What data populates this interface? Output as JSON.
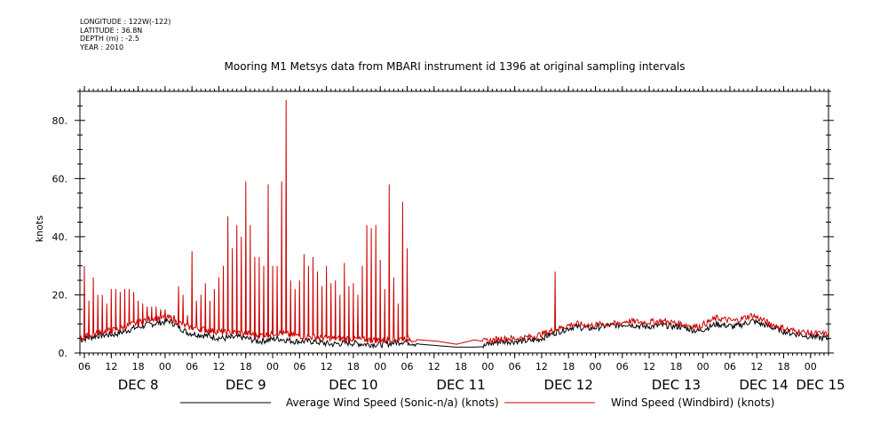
{
  "header": {
    "longitude": "LONGITUDE : 122W(-122)",
    "latitude": "LATITUDE : 36.8N",
    "depth": "DEPTH (m) : -2.5",
    "year": "YEAR : 2010"
  },
  "chart_data": {
    "type": "line",
    "title": "Mooring M1 Metsys data from MBARI instrument id 1396 at original sampling intervals",
    "ylabel": "knots",
    "xlabel": "",
    "ylim": [
      0,
      90
    ],
    "xlim_hours": [
      0,
      167
    ],
    "yticks": [
      0,
      20,
      40,
      60,
      80
    ],
    "ytick_labels": [
      "0.",
      "20.",
      "40.",
      "60.",
      "80."
    ],
    "hour_ticks": [
      "06",
      "12",
      "18",
      "00",
      "06",
      "12",
      "18",
      "00",
      "06",
      "12",
      "18",
      "00",
      "06",
      "12",
      "18",
      "00",
      "06",
      "12",
      "18",
      "00",
      "06",
      "12",
      "18",
      "00",
      "06",
      "12",
      "18",
      "00"
    ],
    "day_labels": [
      "DEC  8",
      "DEC  9",
      "DEC 10",
      "DEC 11",
      "DEC 12",
      "DEC 13",
      "DEC 14",
      "DEC 15"
    ],
    "grid": false,
    "legend": "bottom",
    "series": [
      {
        "name": "Average Wind Speed (Sonic-n/a) (knots)",
        "color": "#000000",
        "points": [
          [
            0,
            4.5
          ],
          [
            4,
            6
          ],
          [
            8,
            6.5
          ],
          [
            12,
            8.5
          ],
          [
            16,
            10
          ],
          [
            20,
            11
          ],
          [
            24,
            7
          ],
          [
            28,
            6
          ],
          [
            32,
            5
          ],
          [
            36,
            5.5
          ],
          [
            40,
            4
          ],
          [
            44,
            5
          ],
          [
            48,
            4
          ],
          [
            52,
            4
          ],
          [
            56,
            3
          ],
          [
            60,
            3.5
          ],
          [
            64,
            3
          ],
          [
            68,
            3
          ],
          [
            72,
            4
          ],
          [
            76,
            3
          ],
          [
            80,
            2.5
          ],
          [
            84,
            2
          ],
          [
            88,
            2
          ],
          [
            90,
            2.2
          ],
          [
            91,
            3
          ],
          [
            94,
            4
          ],
          [
            98,
            4
          ],
          [
            102,
            4.5
          ],
          [
            106,
            7
          ],
          [
            110,
            9
          ],
          [
            114,
            8.5
          ],
          [
            118,
            9.5
          ],
          [
            120,
            9.5
          ],
          [
            122,
            10
          ],
          [
            126,
            9
          ],
          [
            130,
            9.5
          ],
          [
            134,
            9
          ],
          [
            138,
            7.5
          ],
          [
            142,
            10
          ],
          [
            146,
            9
          ],
          [
            150,
            11
          ],
          [
            154,
            9
          ],
          [
            158,
            7
          ],
          [
            162,
            6
          ],
          [
            166,
            5
          ],
          [
            170,
            5
          ],
          [
            174,
            4
          ],
          [
            178,
            5.5
          ],
          [
            180,
            6
          ],
          [
            182,
            5
          ],
          [
            184,
            6
          ],
          [
            186,
            5.5
          ],
          [
            188,
            5
          ],
          [
            190,
            6
          ]
        ]
      },
      {
        "name": "Wind Speed (Windbird) (knots)",
        "color": "#cc0000",
        "points": [
          [
            0,
            5
          ],
          [
            4,
            7
          ],
          [
            8,
            8
          ],
          [
            12,
            10
          ],
          [
            16,
            12
          ],
          [
            20,
            12
          ],
          [
            24,
            9
          ],
          [
            28,
            8
          ],
          [
            32,
            7
          ],
          [
            36,
            7
          ],
          [
            40,
            6
          ],
          [
            44,
            7
          ],
          [
            48,
            6
          ],
          [
            52,
            5.5
          ],
          [
            56,
            5
          ],
          [
            60,
            5
          ],
          [
            64,
            4.5
          ],
          [
            68,
            4.5
          ],
          [
            72,
            5
          ],
          [
            76,
            4.5
          ],
          [
            80,
            4
          ],
          [
            84,
            3
          ],
          [
            88,
            4.5
          ],
          [
            90,
            4
          ],
          [
            91,
            4
          ],
          [
            94,
            5
          ],
          [
            98,
            5
          ],
          [
            102,
            6
          ],
          [
            106,
            8
          ],
          [
            110,
            10
          ],
          [
            114,
            9.5
          ],
          [
            118,
            10
          ],
          [
            120,
            10
          ],
          [
            122,
            11
          ],
          [
            126,
            10.5
          ],
          [
            130,
            11
          ],
          [
            134,
            10
          ],
          [
            138,
            9
          ],
          [
            142,
            12
          ],
          [
            146,
            11
          ],
          [
            150,
            13
          ],
          [
            154,
            10
          ],
          [
            158,
            8
          ],
          [
            162,
            7
          ],
          [
            166,
            6.5
          ],
          [
            170,
            6.5
          ],
          [
            174,
            6
          ],
          [
            178,
            7
          ],
          [
            180,
            8
          ],
          [
            182,
            7
          ],
          [
            184,
            8
          ],
          [
            186,
            7.5
          ],
          [
            188,
            7
          ],
          [
            190,
            7.5
          ]
        ],
        "spikes": [
          [
            1,
            30
          ],
          [
            2,
            18
          ],
          [
            3,
            26
          ],
          [
            4,
            20
          ],
          [
            5,
            20
          ],
          [
            6,
            17
          ],
          [
            7,
            22
          ],
          [
            8,
            22
          ],
          [
            9,
            21
          ],
          [
            10,
            22
          ],
          [
            11,
            22
          ],
          [
            12,
            21
          ],
          [
            13,
            18
          ],
          [
            14,
            17
          ],
          [
            15,
            16
          ],
          [
            16,
            16
          ],
          [
            17,
            16
          ],
          [
            18,
            15
          ],
          [
            19,
            15
          ],
          [
            20,
            13
          ],
          [
            21,
            13
          ],
          [
            22,
            23
          ],
          [
            23,
            20
          ],
          [
            24,
            13
          ],
          [
            25,
            35
          ],
          [
            26,
            18
          ],
          [
            27,
            20
          ],
          [
            28,
            24
          ],
          [
            29,
            18
          ],
          [
            30,
            22
          ],
          [
            31,
            26
          ],
          [
            32,
            30
          ],
          [
            33,
            47
          ],
          [
            34,
            36
          ],
          [
            35,
            44
          ],
          [
            36,
            40
          ],
          [
            37,
            59
          ],
          [
            38,
            44
          ],
          [
            39,
            33
          ],
          [
            40,
            33
          ],
          [
            41,
            30
          ],
          [
            42,
            58
          ],
          [
            43,
            30
          ],
          [
            44,
            30
          ],
          [
            45,
            59
          ],
          [
            46,
            87
          ],
          [
            47,
            25
          ],
          [
            48,
            22
          ],
          [
            49,
            25
          ],
          [
            50,
            34
          ],
          [
            51,
            30
          ],
          [
            52,
            33
          ],
          [
            53,
            28
          ],
          [
            54,
            23
          ],
          [
            55,
            30
          ],
          [
            56,
            24
          ],
          [
            57,
            25
          ],
          [
            58,
            20
          ],
          [
            59,
            31
          ],
          [
            60,
            23
          ],
          [
            61,
            24
          ],
          [
            62,
            20
          ],
          [
            63,
            30
          ],
          [
            64,
            44
          ],
          [
            65,
            43
          ],
          [
            66,
            44
          ],
          [
            67,
            32
          ],
          [
            68,
            22
          ],
          [
            69,
            58
          ],
          [
            70,
            26
          ],
          [
            71,
            17
          ],
          [
            72,
            52
          ],
          [
            73,
            36
          ],
          [
            106,
            28
          ]
        ]
      }
    ]
  },
  "legend": {
    "item1": "Average Wind Speed (Sonic-n/a) (knots)",
    "item2": "Wind Speed (Windbird) (knots)"
  }
}
